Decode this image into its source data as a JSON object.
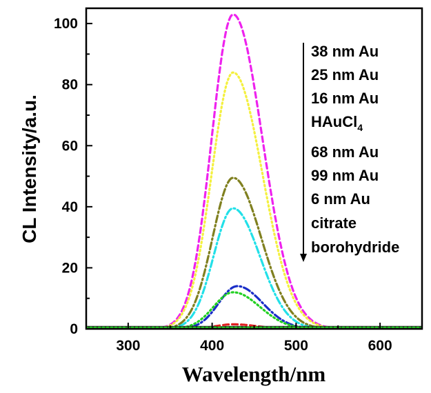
{
  "chart_data": {
    "type": "line",
    "title": "",
    "xlabel": "Wavelength/nm",
    "ylabel": "CL Intensity/a.u.",
    "xlim": [
      250,
      650
    ],
    "ylim": [
      0,
      105
    ],
    "xticks": [
      "300",
      "400",
      "500",
      "600"
    ],
    "yticks": [
      "0",
      "20",
      "40",
      "60",
      "80",
      "100"
    ],
    "grid": false,
    "legend_position": "top-right",
    "legend": {
      "items": [
        "38 nm Au",
        "25 nm Au",
        "16 nm Au",
        "HAuCl",
        "68 nm Au",
        "99 nm Au",
        "6 nm Au",
        "citrate",
        "borohydride"
      ],
      "hau_subscript": "4"
    },
    "series": [
      {
        "name": "38 nm Au",
        "color": "#ee22ee",
        "dash": "dashed",
        "peak_x": 425,
        "peak_y": 103,
        "width": 44,
        "start": 340,
        "end": 560
      },
      {
        "name": "25 nm Au",
        "color": "#f4f040",
        "dash": "dotted",
        "peak_x": 425,
        "peak_y": 84,
        "width": 44,
        "start": 340,
        "end": 555
      },
      {
        "name": "16 nm Au",
        "color": "#808020",
        "dash": "dashdot",
        "peak_x": 425,
        "peak_y": 49.5,
        "width": 42,
        "start": 345,
        "end": 545
      },
      {
        "name": "99 nm Au",
        "color": "#22e0e8",
        "dash": "dashdot",
        "peak_x": 425,
        "peak_y": 39.5,
        "width": 40,
        "start": 345,
        "end": 540
      },
      {
        "name": "68 nm Au",
        "color": "#1a2ec8",
        "dash": "dashdot",
        "peak_x": 430,
        "peak_y": 14,
        "width": 38,
        "start": 360,
        "end": 530
      },
      {
        "name": "6 nm Au",
        "color": "#22d022",
        "dash": "dotted",
        "peak_x": 425,
        "peak_y": 12,
        "width": 40,
        "start": 345,
        "end": 540
      },
      {
        "name": "HAuCl4",
        "color": "#e02020",
        "dash": "dashed",
        "peak_x": 425,
        "peak_y": 1.5,
        "width": 35,
        "start": 360,
        "end": 470
      },
      {
        "name": "citrate",
        "color": "#222222",
        "dash": "solid",
        "peak_x": 425,
        "peak_y": 0.6,
        "width": 40,
        "start": 250,
        "end": 650
      },
      {
        "name": "borohydride",
        "color": "#22d022",
        "dash": "dotted",
        "peak_x": 425,
        "peak_y": 0.4,
        "width": 40,
        "start": 250,
        "end": 650
      }
    ]
  }
}
